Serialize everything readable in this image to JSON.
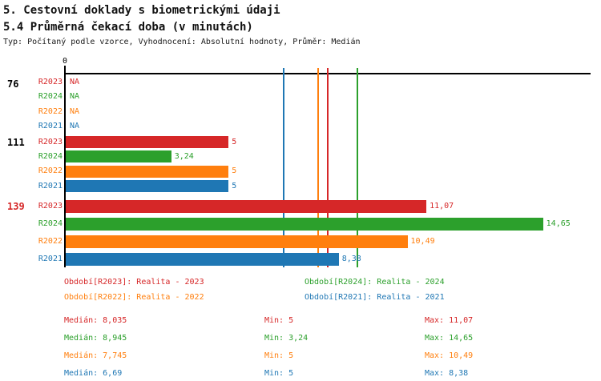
{
  "header": {
    "title": "5. Cestovní doklady s biometrickými údaji",
    "subtitle": "5.4 Průměrná čekací doba (v minutách)",
    "meta": "Typ: Počítaný podle vzorce, Vyhodnocení: Absolutní hodnoty, Průměr: Medián"
  },
  "axis": {
    "zero_label": "0"
  },
  "chart_data": {
    "type": "bar",
    "orientation": "horizontal",
    "title": "5.4 Průměrná čekací doba (v minutách)",
    "xlim": [
      0,
      16.1
    ],
    "grid": false,
    "categories": [
      "76",
      "111",
      "139"
    ],
    "category_colors": [
      "#000000",
      "#000000",
      "#d62728"
    ],
    "na_text": "NA",
    "series": [
      {
        "name": "R2023",
        "color": "#d62728",
        "values": [
          null,
          5,
          11.07
        ],
        "value_labels": [
          "NA",
          "5",
          "11,07"
        ],
        "median": 8.035,
        "legend": "Období[R2023]: Realita - 2023",
        "stats": {
          "median": "Medián: 8,035",
          "min": "Min: 5",
          "max": "Max: 11,07"
        }
      },
      {
        "name": "R2024",
        "color": "#2ca02c",
        "values": [
          null,
          3.24,
          14.65
        ],
        "value_labels": [
          "NA",
          "3,24",
          "14,65"
        ],
        "median": 8.945,
        "legend": "Období[R2024]: Realita - 2024",
        "stats": {
          "median": "Medián: 8,945",
          "min": "Min: 3,24",
          "max": "Max: 14,65"
        }
      },
      {
        "name": "R2022",
        "color": "#ff7f0e",
        "values": [
          null,
          5,
          10.49
        ],
        "value_labels": [
          "NA",
          "5",
          "10,49"
        ],
        "median": 7.745,
        "legend": "Období[R2022]: Realita - 2022",
        "stats": {
          "median": "Medián: 7,745",
          "min": "Min: 5",
          "max": "Max: 10,49"
        }
      },
      {
        "name": "R2021",
        "color": "#1f77b4",
        "values": [
          null,
          5,
          8.38
        ],
        "value_labels": [
          "NA",
          "5",
          "8,38"
        ],
        "median": 6.69,
        "legend": "Období[R2021]: Realita - 2021",
        "stats": {
          "median": "Medián: 6,69",
          "min": "Min: 5",
          "max": "Max: 8,38"
        }
      }
    ]
  }
}
